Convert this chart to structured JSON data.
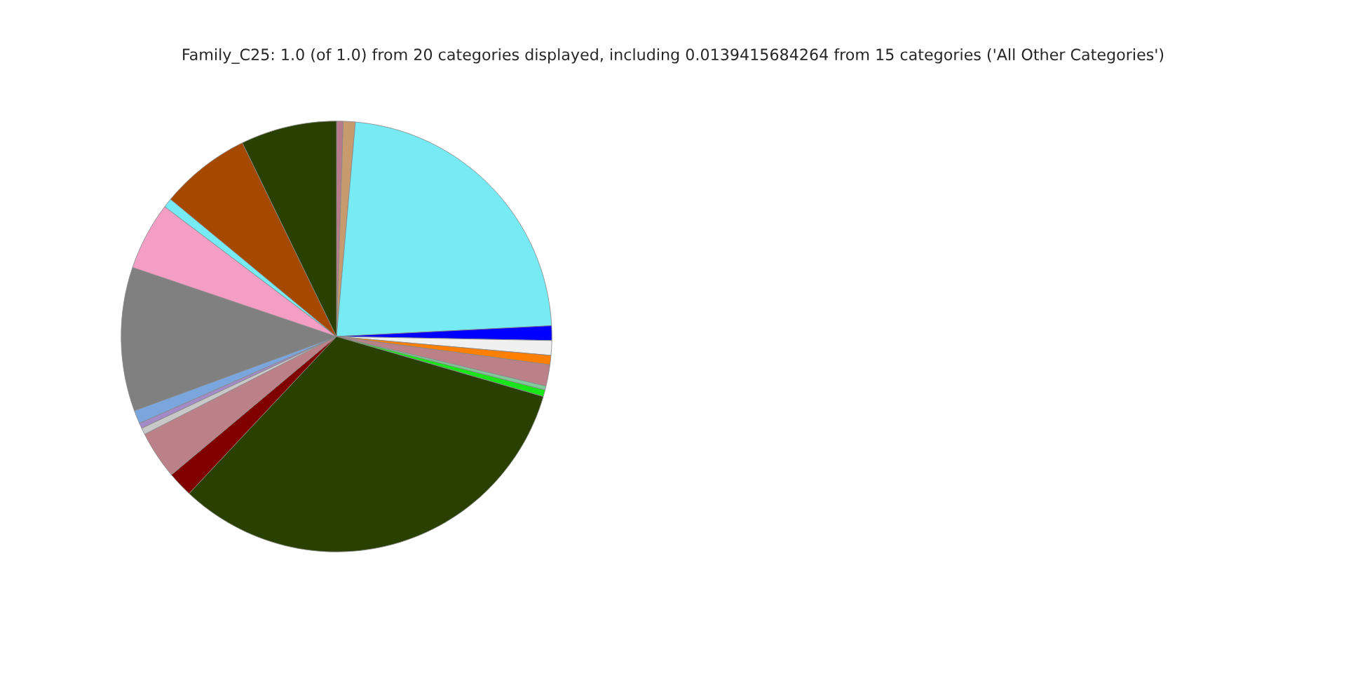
{
  "chart_data": {
    "type": "pie",
    "title": "Family_C25: 1.0 (of 1.0) from 20 categories displayed, including 0.0139415684264 from 15 categories ('All Other Categories')",
    "categories": [
      null,
      null,
      null,
      null,
      null,
      null,
      null,
      null,
      null,
      null,
      null,
      null,
      null,
      null,
      null,
      null,
      null,
      null,
      null,
      null
    ],
    "values": [
      0.5,
      0.9,
      22.8,
      1.1,
      1.1,
      0.7,
      1.6,
      0.3,
      0.5,
      32.5,
      1.9,
      3.6,
      0.5,
      0.4,
      1.0,
      10.8,
      5.1,
      0.7,
      6.8,
      7.2
    ],
    "colors": [
      "#b97b8c",
      "#c89b6e",
      "#77ebf3",
      "#0000ff",
      "#f0f0f0",
      "#ff7f00",
      "#bc8088",
      "#7fc99b",
      "#19e619",
      "#2a4000",
      "#800000",
      "#bc8088",
      "#c8c8c8",
      "#a58ac8",
      "#7aa6dd",
      "#808080",
      "#f49ec5",
      "#77ebf3",
      "#a54800",
      "#2a4000"
    ],
    "legend": false
  }
}
